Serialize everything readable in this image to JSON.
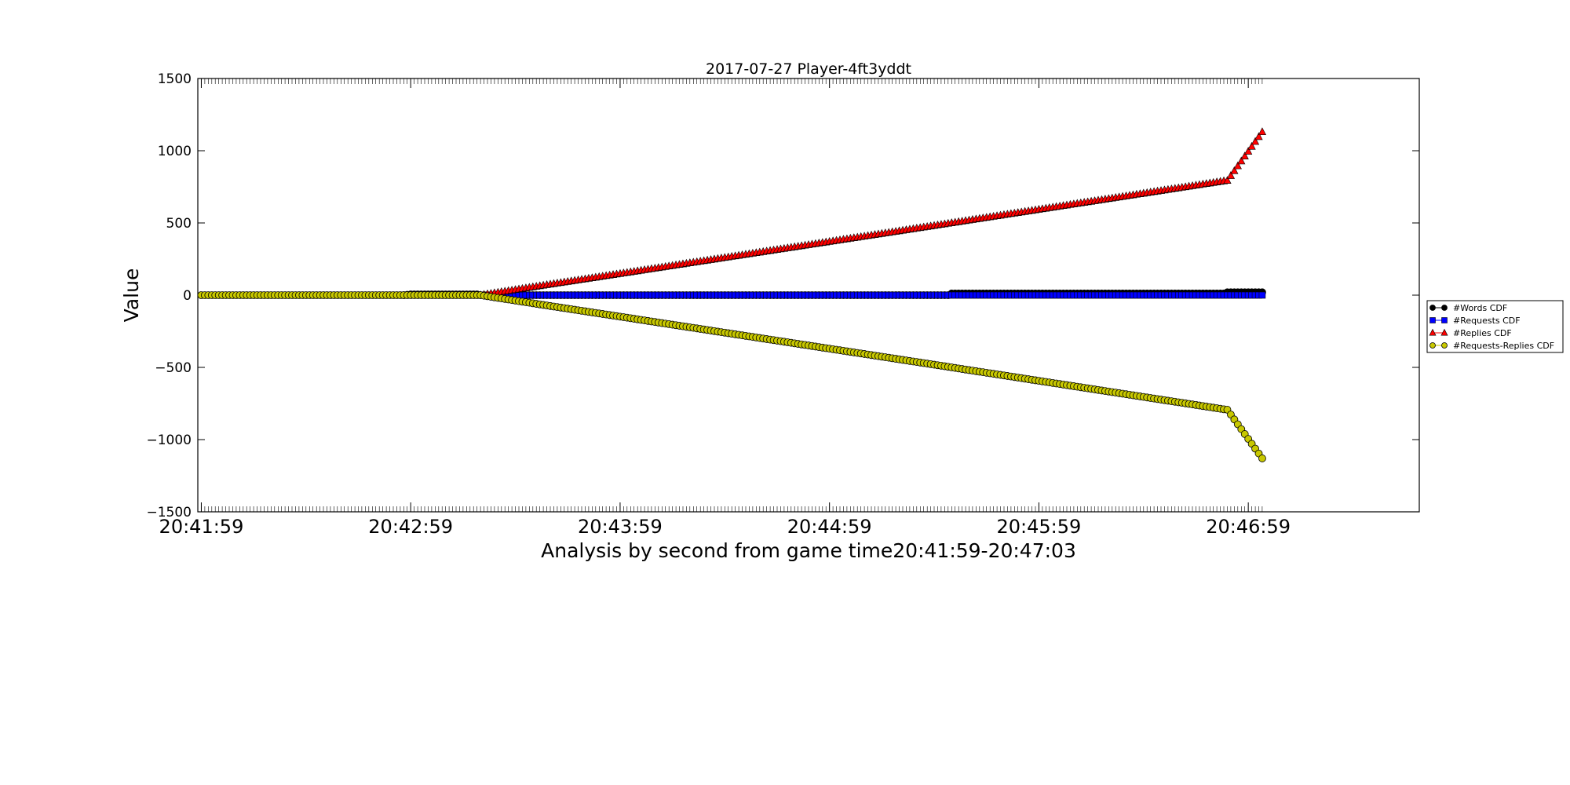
{
  "chart_data": {
    "type": "line",
    "title": "2017-07-27 Player-4ft3yddt",
    "xlabel": "Analysis by second from game time20:41:59-20:47:03",
    "ylabel": "Value",
    "x_ticks": [
      "20:41:59",
      "20:42:59",
      "20:43:59",
      "20:44:59",
      "20:45:59",
      "20:46:59"
    ],
    "x_tick_seconds": [
      0,
      60,
      120,
      180,
      240,
      300
    ],
    "xlim_seconds": [
      -1,
      349
    ],
    "y_ticks": [
      1500,
      1000,
      500,
      0,
      -500,
      -1000,
      -1500
    ],
    "y_tick_labels": [
      "1500",
      "1000",
      "500",
      "0",
      "−500",
      "−1000",
      "−1500"
    ],
    "ylim": [
      -1500,
      1500
    ],
    "grid": false,
    "legend_position": "outside-right",
    "x_seconds_from_start": [
      0,
      58,
      60,
      79,
      80,
      100,
      125,
      126,
      214,
      215,
      293,
      294,
      304
    ],
    "series": [
      {
        "name": "#Words CDF",
        "marker": "circle",
        "color": "#000000",
        "values": [
          0,
          0,
          5,
          5,
          0,
          0,
          0,
          0,
          0,
          12,
          12,
          20,
          20
        ]
      },
      {
        "name": "#Requests CDF",
        "marker": "square",
        "color": "#0000ff",
        "values": [
          0,
          0,
          0,
          0,
          0,
          0,
          0,
          0,
          0,
          0,
          0,
          0,
          0
        ]
      },
      {
        "name": "#Replies CDF",
        "marker": "triangle",
        "color": "#ff0000",
        "values": [
          0,
          0,
          0,
          0,
          0,
          75,
          167,
          171,
          496,
          500,
          790,
          793,
          1130
        ]
      },
      {
        "name": "#Requests-Replies CDF",
        "marker": "circle",
        "color": "#c8c800",
        "values": [
          0,
          0,
          0,
          0,
          0,
          -75,
          -167,
          -171,
          -496,
          -500,
          -790,
          -793,
          -1130
        ]
      }
    ]
  }
}
